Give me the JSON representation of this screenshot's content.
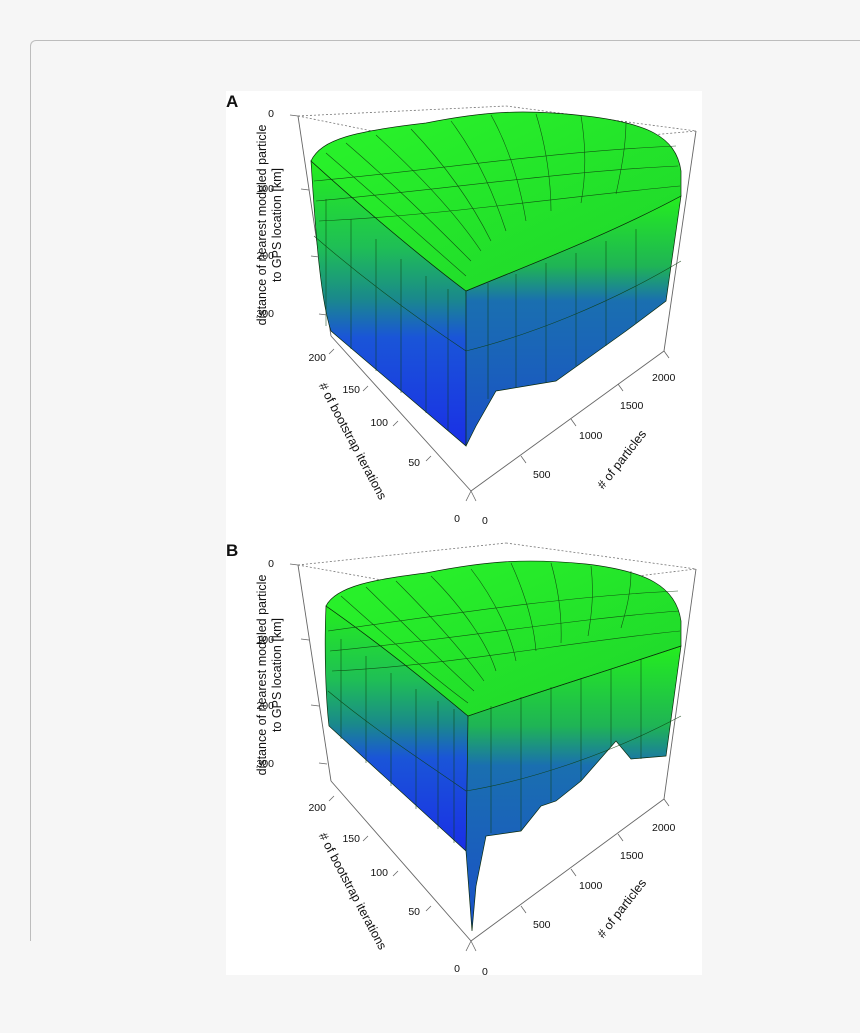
{
  "chart_data": [
    {
      "type": "3d-surface",
      "panel": "A",
      "zlabel_line1": "distance of nearest modeled particle",
      "zlabel_line2": "to GPS location [km]",
      "xlabel": "# of particles",
      "ylabel": "# of bootstrap iterations",
      "z_ticks": [
        "0",
        "100",
        "200",
        "300"
      ],
      "x_ticks": [
        "0",
        "500",
        "1000",
        "1500",
        "2000"
      ],
      "y_ticks": [
        "0",
        "50",
        "100",
        "150",
        "200"
      ],
      "zlim": [
        0,
        350
      ],
      "xlim": [
        0,
        2000
      ],
      "ylim": [
        0,
        200
      ],
      "colors": {
        "high": "#22f01e",
        "mid": "#119980",
        "low": "#1a3fe0"
      }
    },
    {
      "type": "3d-surface",
      "panel": "B",
      "zlabel_line1": "distance of nearest modeled particle",
      "zlabel_line2": "to GPS location [km]",
      "xlabel": "# of particles",
      "ylabel": "# of bootstrap iterations",
      "z_ticks": [
        "0",
        "100",
        "200",
        "300"
      ],
      "x_ticks": [
        "0",
        "500",
        "1000",
        "1500",
        "2000"
      ],
      "y_ticks": [
        "0",
        "50",
        "100",
        "150",
        "200"
      ],
      "zlim": [
        0,
        350
      ],
      "xlim": [
        0,
        2000
      ],
      "ylim": [
        0,
        200
      ],
      "colors": {
        "high": "#22f01e",
        "mid": "#119980",
        "low": "#1a3fe0"
      }
    }
  ]
}
